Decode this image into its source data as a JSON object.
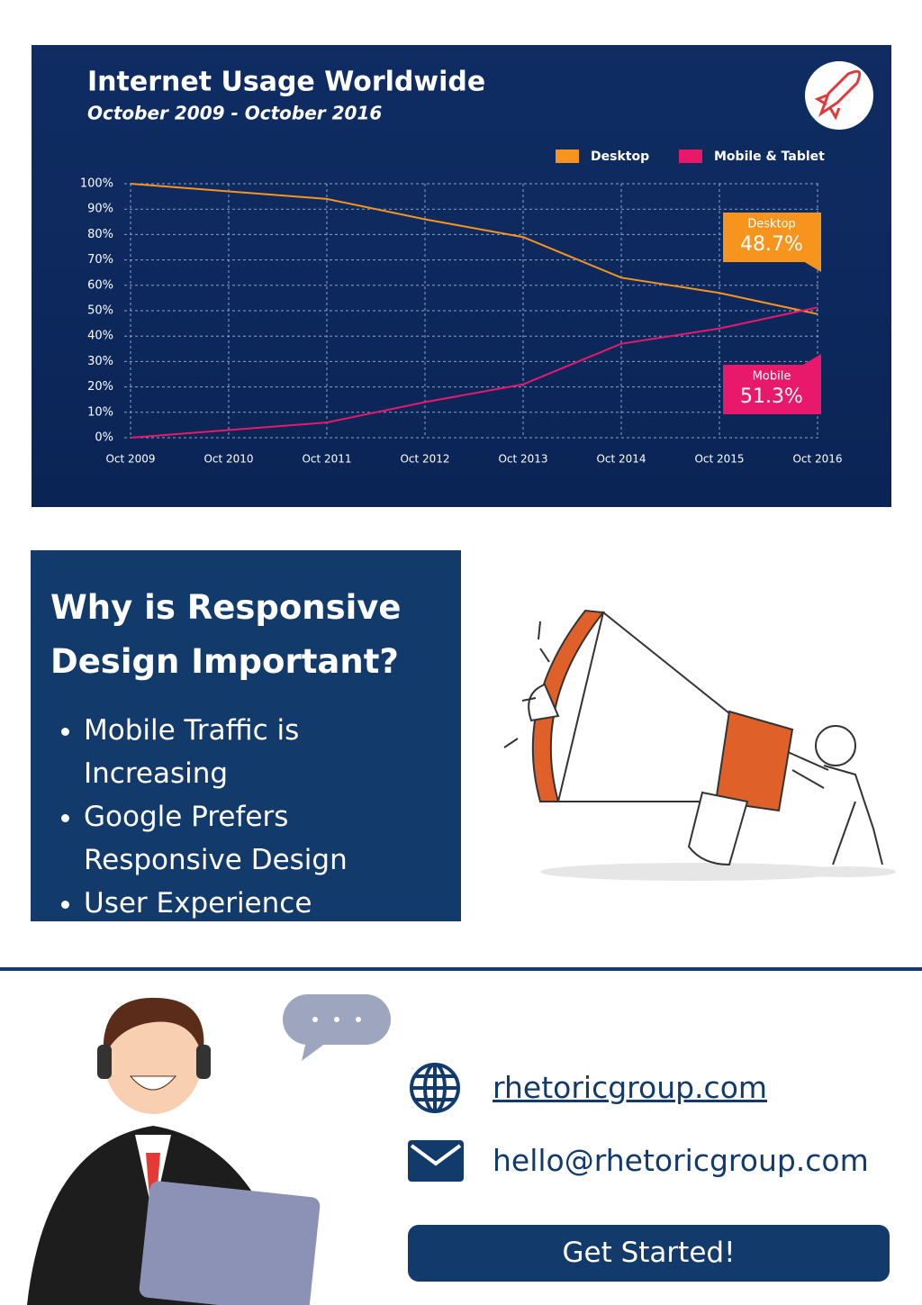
{
  "chart_data": {
    "type": "line",
    "title": "Internet Usage Worldwide",
    "subtitle": "October 2009 - October 2016",
    "categories": [
      "Oct 2009",
      "Oct 2010",
      "Oct 2011",
      "Oct 2012",
      "Oct 2013",
      "Oct 2014",
      "Oct 2015",
      "Oct 2016"
    ],
    "series": [
      {
        "name": "Desktop",
        "callout": "Desktop",
        "color": "#f7941d",
        "values": [
          100,
          97,
          94,
          86,
          79,
          63,
          57,
          48.7
        ],
        "value_labels": [
          null,
          null,
          null,
          null,
          null,
          null,
          null,
          "48.7%"
        ]
      },
      {
        "name": "Mobile & Tablet",
        "callout": "Mobile",
        "color": "#e8196b",
        "values": [
          0,
          3,
          6,
          14,
          21,
          37,
          43,
          51.3
        ],
        "value_labels": [
          null,
          null,
          null,
          null,
          null,
          null,
          null,
          "51.3%"
        ]
      }
    ],
    "ylim": [
      0,
      100
    ],
    "yticks": [
      {
        "value": 0,
        "label": "0%"
      },
      {
        "value": 10,
        "label": "10%"
      },
      {
        "value": 20,
        "label": "20%"
      },
      {
        "value": 30,
        "label": "30%"
      },
      {
        "value": 40,
        "label": "40%"
      },
      {
        "value": 50,
        "label": "50%"
      },
      {
        "value": 60,
        "label": "60%"
      },
      {
        "value": 70,
        "label": "70%"
      },
      {
        "value": 80,
        "label": "80%"
      },
      {
        "value": 90,
        "label": "90%"
      },
      {
        "value": 100,
        "label": "100%"
      }
    ],
    "grid": true,
    "legend": "top-right"
  },
  "section": {
    "title": "Why is Responsive Design Important?",
    "bullets": [
      "Mobile Traffic is Increasing",
      "Google Prefers Responsive Design",
      "User Experience"
    ]
  },
  "contact": {
    "website": "rhetoricgroup.com",
    "email": "hello@rhetoricgroup.com",
    "button": "Get Started!"
  }
}
